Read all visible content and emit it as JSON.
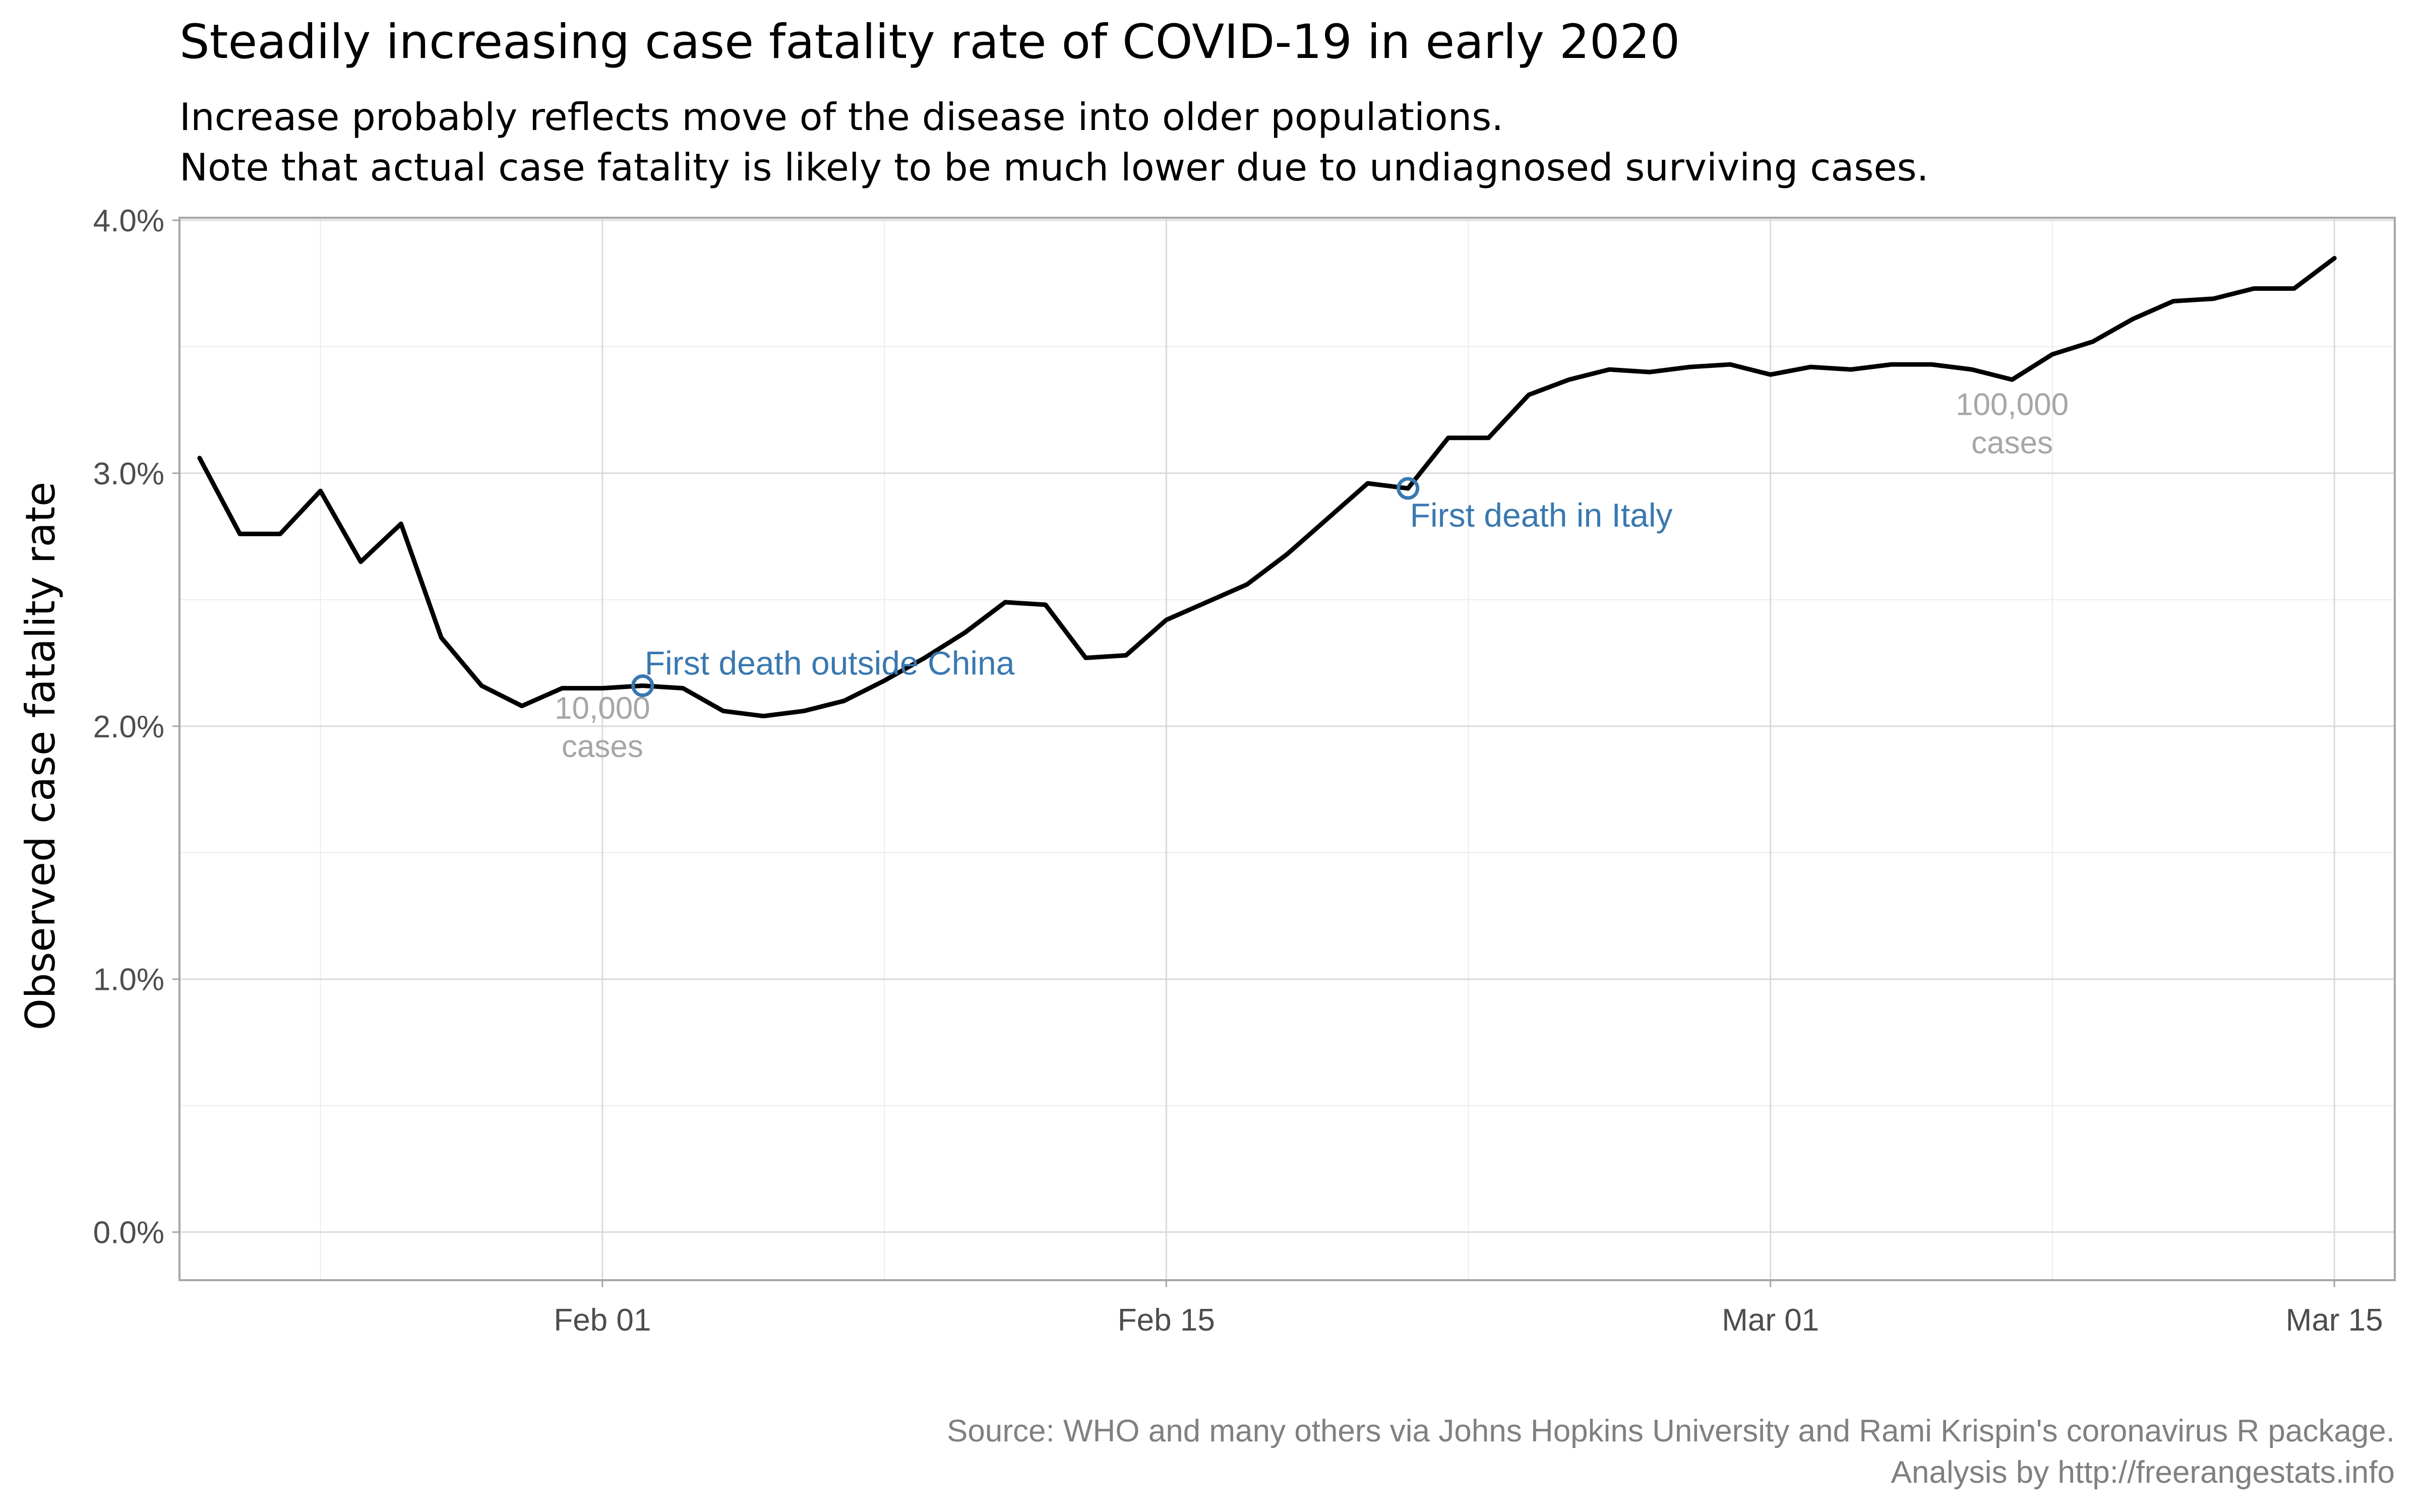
{
  "chart_data": {
    "type": "line",
    "title": "Steadily increasing case fatality rate of COVID-19 in early 2020",
    "subtitle_lines": [
      "Increase probably reflects move of the disease into older populations.",
      "Note that actual case fatality is likely to be much lower due to undiagnosed surviving cases."
    ],
    "xlabel": "",
    "ylabel": "Observed case fatality rate",
    "caption_lines": [
      "Source: WHO and many others via Johns Hopkins University and Rami Krispin's coronavirus R package.",
      "Analysis by http://freerangestats.info"
    ],
    "x_start": "2020-01-22",
    "x_range": [
      -0.5,
      54.5
    ],
    "x_ticks": [
      {
        "day": 10,
        "label": "Feb 01"
      },
      {
        "day": 24,
        "label": "Feb 15"
      },
      {
        "day": 39,
        "label": "Mar 01"
      },
      {
        "day": 53,
        "label": "Mar 15"
      }
    ],
    "x_minor_ticks": [
      3,
      17,
      31.5,
      46
    ],
    "y_range": [
      -0.0019,
      0.0401
    ],
    "y_ticks": [
      {
        "value": 0.0,
        "label": "0.0%"
      },
      {
        "value": 0.01,
        "label": "1.0%"
      },
      {
        "value": 0.02,
        "label": "2.0%"
      },
      {
        "value": 0.03,
        "label": "3.0%"
      },
      {
        "value": 0.04,
        "label": "4.0%"
      }
    ],
    "y_minor_ticks": [
      0.005,
      0.015,
      0.025,
      0.035
    ],
    "grid": true,
    "series": [
      {
        "name": "Observed case fatality rate",
        "color": "#000000",
        "values": [
          0.0306,
          0.0276,
          0.0276,
          0.0293,
          0.0265,
          0.028,
          0.0235,
          0.0216,
          0.0208,
          0.0215,
          0.0215,
          0.0216,
          0.0215,
          0.0206,
          0.0204,
          0.0206,
          0.021,
          0.0218,
          0.0227,
          0.0237,
          0.0249,
          0.0248,
          0.0227,
          0.0228,
          0.0242,
          0.0249,
          0.0256,
          0.0268,
          0.0282,
          0.0296,
          0.0294,
          0.0314,
          0.0314,
          0.0331,
          0.0337,
          0.0341,
          0.034,
          0.0342,
          0.0343,
          0.0339,
          0.0342,
          0.0341,
          0.0343,
          0.0343,
          0.0341,
          0.0337,
          0.0347,
          0.0352,
          0.0361,
          0.0368,
          0.0369,
          0.0373,
          0.0373,
          0.0385
        ]
      }
    ],
    "events": [
      {
        "day": 11,
        "value": 0.0216,
        "label": "First death outside China",
        "color": "#3a78b0"
      },
      {
        "day": 30,
        "value": 0.0294,
        "label": "First death in Italy",
        "color": "#3a78b0"
      }
    ],
    "milestones": [
      {
        "day": 10,
        "value": 0.0203,
        "lines": [
          "10,000",
          "cases"
        ],
        "color": "#a6a6a6"
      },
      {
        "day": 45,
        "value": 0.0323,
        "lines": [
          "100,000",
          "cases"
        ],
        "color": "#a6a6a6"
      }
    ]
  }
}
